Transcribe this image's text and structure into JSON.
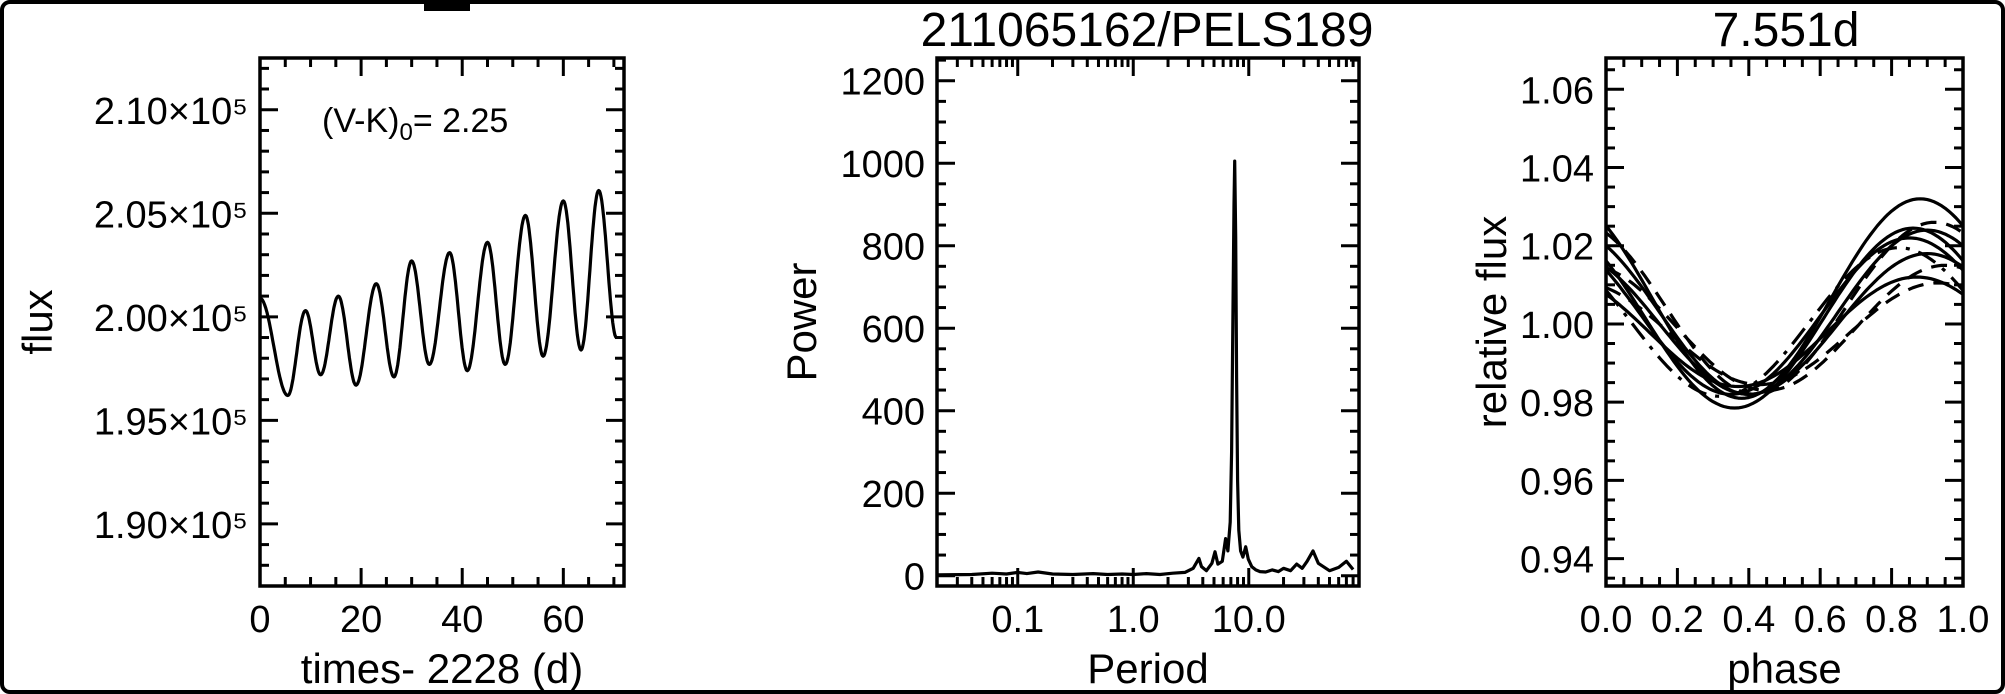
{
  "chart_data": [
    {
      "id": "timeseries",
      "type": "line",
      "title": "",
      "xlabel": "times- 2228 (d)",
      "ylabel": "flux",
      "xlim": [
        0,
        72
      ],
      "ylim": [
        187000,
        212500
      ],
      "grid": false,
      "x_ticks": [
        {
          "v": 0,
          "label": "0"
        },
        {
          "v": 20,
          "label": "20"
        },
        {
          "v": 40,
          "label": "40"
        },
        {
          "v": 60,
          "label": "60"
        }
      ],
      "x_minor_step": 5,
      "y_ticks": [
        {
          "v": 190000,
          "label": "1.90×10⁵"
        },
        {
          "v": 195000,
          "label": "1.95×10⁵"
        },
        {
          "v": 200000,
          "label": "2.00×10⁵"
        },
        {
          "v": 205000,
          "label": "2.05×10⁵"
        },
        {
          "v": 210000,
          "label": "2.10×10⁵"
        }
      ],
      "y_minor_step": 1000,
      "annotation": {
        "pre": "(V-K)",
        "sub": "0",
        "post": "= 2.25"
      },
      "series": {
        "mode": "extrema-smooth",
        "points": [
          [
            0,
            200900
          ],
          [
            5.5,
            196200
          ],
          [
            9,
            200300
          ],
          [
            12,
            197200
          ],
          [
            15.5,
            201000
          ],
          [
            19,
            196700
          ],
          [
            23,
            201600
          ],
          [
            26.5,
            197100
          ],
          [
            30,
            202700
          ],
          [
            33.5,
            197700
          ],
          [
            37.5,
            203100
          ],
          [
            41,
            197400
          ],
          [
            45,
            203600
          ],
          [
            48.5,
            197700
          ],
          [
            52.5,
            204900
          ],
          [
            56,
            198100
          ],
          [
            60,
            205600
          ],
          [
            63.5,
            198400
          ],
          [
            67,
            206100
          ],
          [
            70.5,
            199000
          ]
        ]
      }
    },
    {
      "id": "periodogram",
      "type": "line",
      "title": "211065162/PELS189",
      "xlabel": "Period",
      "ylabel": "Power",
      "xscale": "log",
      "xlim": [
        0.02,
        90
      ],
      "ylim": [
        -25,
        1255
      ],
      "grid": false,
      "peak_period": 7.551,
      "peak_power": 1005,
      "x_ticks": [
        {
          "v": 0.1,
          "label": "0.1"
        },
        {
          "v": 1,
          "label": "1.0"
        },
        {
          "v": 10,
          "label": "10.0"
        }
      ],
      "y_ticks": [
        {
          "v": 0,
          "label": "0"
        },
        {
          "v": 200,
          "label": "200"
        },
        {
          "v": 400,
          "label": "400"
        },
        {
          "v": 600,
          "label": "600"
        },
        {
          "v": 800,
          "label": "800"
        },
        {
          "v": 1000,
          "label": "1000"
        },
        {
          "v": 1200,
          "label": "1200"
        }
      ],
      "y_minor_step": 50,
      "series": {
        "mode": "line",
        "points": [
          [
            0.02,
            2
          ],
          [
            0.04,
            3
          ],
          [
            0.06,
            6
          ],
          [
            0.08,
            4
          ],
          [
            0.1,
            8
          ],
          [
            0.12,
            5
          ],
          [
            0.15,
            9
          ],
          [
            0.2,
            4
          ],
          [
            0.3,
            3
          ],
          [
            0.45,
            5
          ],
          [
            0.6,
            3
          ],
          [
            0.8,
            4
          ],
          [
            1.0,
            3
          ],
          [
            1.3,
            5
          ],
          [
            1.7,
            3
          ],
          [
            2.2,
            6
          ],
          [
            2.8,
            8
          ],
          [
            3.3,
            18
          ],
          [
            3.7,
            42
          ],
          [
            3.9,
            22
          ],
          [
            4.3,
            12
          ],
          [
            4.8,
            30
          ],
          [
            5.1,
            58
          ],
          [
            5.4,
            28
          ],
          [
            5.9,
            35
          ],
          [
            6.3,
            90
          ],
          [
            6.6,
            60
          ],
          [
            6.9,
            130
          ],
          [
            7.1,
            300
          ],
          [
            7.3,
            650
          ],
          [
            7.45,
            900
          ],
          [
            7.55,
            1005
          ],
          [
            7.7,
            820
          ],
          [
            7.85,
            480
          ],
          [
            8.0,
            230
          ],
          [
            8.2,
            110
          ],
          [
            8.5,
            60
          ],
          [
            8.9,
            45
          ],
          [
            9.4,
            70
          ],
          [
            9.9,
            40
          ],
          [
            10.6,
            22
          ],
          [
            11.5,
            14
          ],
          [
            12.5,
            10
          ],
          [
            14,
            9
          ],
          [
            16,
            14
          ],
          [
            18,
            10
          ],
          [
            20,
            18
          ],
          [
            23,
            12
          ],
          [
            26,
            28
          ],
          [
            29,
            18
          ],
          [
            32,
            35
          ],
          [
            36,
            60
          ],
          [
            40,
            30
          ],
          [
            50,
            12
          ],
          [
            60,
            20
          ],
          [
            70,
            35
          ],
          [
            80,
            15
          ]
        ]
      }
    },
    {
      "id": "phased",
      "type": "line",
      "title": "7.551d",
      "xlabel": "phase",
      "ylabel": "relative flux",
      "xlim": [
        0,
        1
      ],
      "ylim": [
        0.933,
        1.068
      ],
      "grid": false,
      "x_ticks": [
        {
          "v": 0,
          "label": "0.0"
        },
        {
          "v": 0.2,
          "label": "0.2"
        },
        {
          "v": 0.4,
          "label": "0.4"
        },
        {
          "v": 0.6,
          "label": "0.6"
        },
        {
          "v": 0.8,
          "label": "0.8"
        },
        {
          "v": 1,
          "label": "1.0"
        }
      ],
      "x_minor_step": 0.05,
      "y_ticks": [
        {
          "v": 0.94,
          "label": "0.94"
        },
        {
          "v": 0.96,
          "label": "0.96"
        },
        {
          "v": 0.98,
          "label": "0.98"
        },
        {
          "v": 1.0,
          "label": "1.00"
        },
        {
          "v": 1.02,
          "label": "1.02"
        },
        {
          "v": 1.04,
          "label": "1.04"
        },
        {
          "v": 1.06,
          "label": "1.06"
        }
      ],
      "y_minor_step": 0.005,
      "curves": [
        {
          "mean": 1.0065,
          "amp": 0.0255,
          "max_phase": 0.88,
          "style": "solid"
        },
        {
          "mean": 1.004,
          "amp": 0.022,
          "max_phase": 0.92,
          "style": "dashed"
        },
        {
          "mean": 1.002,
          "amp": 0.02,
          "max_phase": 0.85,
          "style": "solid"
        },
        {
          "mean": 1.0,
          "amp": 0.018,
          "max_phase": 0.9,
          "style": "solid"
        },
        {
          "mean": 0.999,
          "amp": 0.016,
          "max_phase": 0.95,
          "style": "dashed"
        },
        {
          "mean": 0.998,
          "amp": 0.014,
          "max_phase": 0.87,
          "style": "solid"
        },
        {
          "mean": 1.0005,
          "amp": 0.019,
          "max_phase": 0.82,
          "style": "dashdot"
        },
        {
          "mean": 1.003,
          "amp": 0.021,
          "max_phase": 0.9,
          "style": "solid"
        },
        {
          "mean": 0.9975,
          "amp": 0.013,
          "max_phase": 0.93,
          "style": "dashed"
        },
        {
          "mean": 1.0015,
          "amp": 0.023,
          "max_phase": 0.86,
          "style": "solid"
        }
      ]
    }
  ]
}
